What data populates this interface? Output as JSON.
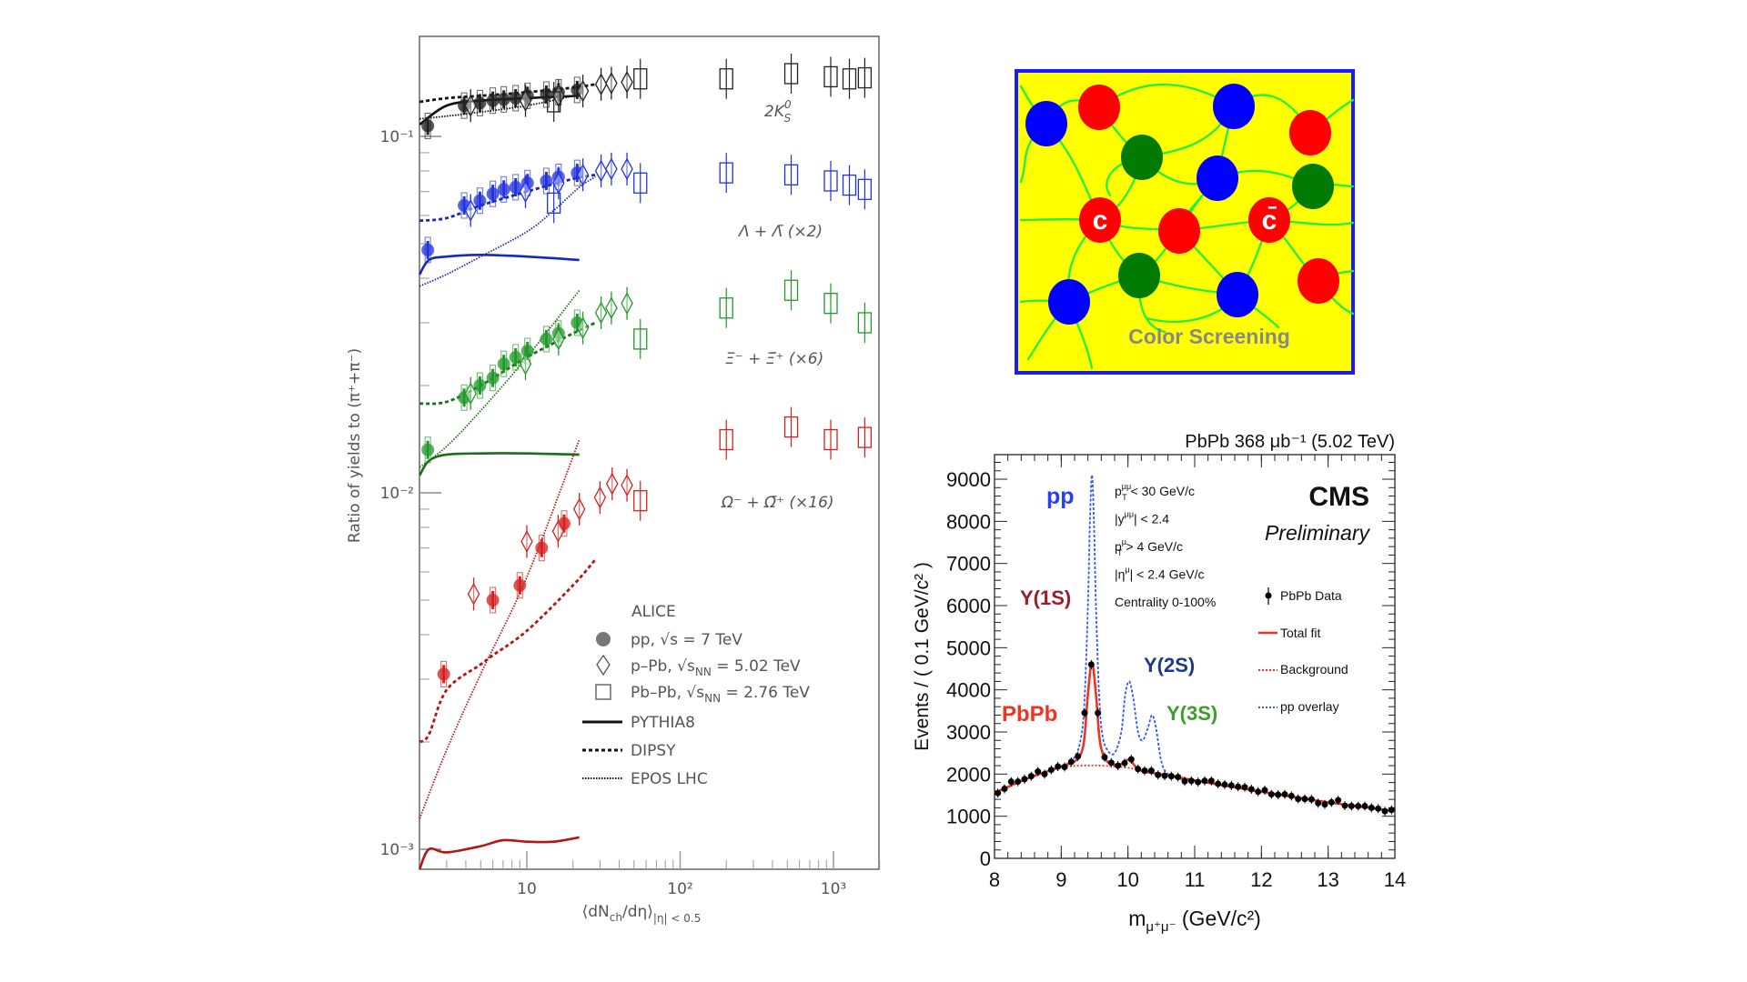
{
  "chart_data": [
    {
      "type": "scatter",
      "xscale": "log",
      "yscale": "log",
      "xlim": [
        2,
        2000
      ],
      "ylim": [
        0.00088,
        0.19
      ],
      "ylabel": "Ratio of yields to (π⁺+π⁻)",
      "xlabel_parts": {
        "a": "⟨dN",
        "b": "ch",
        "c": "/dη⟩",
        "d": "|η| < 0.5"
      },
      "y_ticks": [
        {
          "v": 0.1,
          "label": "10⁻¹"
        },
        {
          "v": 0.01,
          "label": "10⁻²"
        },
        {
          "v": 0.001,
          "label": "10⁻³"
        }
      ],
      "x_ticks": [
        {
          "v": 10,
          "label": "10"
        },
        {
          "v": 100,
          "label": "10²"
        },
        {
          "v": 1000,
          "label": "10³"
        }
      ],
      "legend": {
        "title": "ALICE",
        "pp": "pp, √s = 7 TeV",
        "ppb": {
          "a": "p–Pb, √s",
          "b": "NN",
          "c": " = 5.02 TeV"
        },
        "pbpb": {
          "a": "Pb–Pb, √s",
          "b": "NN",
          "c": " = 2.76 TeV"
        },
        "pythia": "PYTHIA8",
        "dipsy": "DIPSY",
        "epos": "EPOS LHC",
        "placement": "bottom-center"
      },
      "species": [
        {
          "key": "K",
          "color": "#222222",
          "model_color": "#111111",
          "label": {
            "a": "2K",
            "sup": "0",
            "sub": "S",
            "c": ""
          },
          "pp": {
            "x": [
              2.26,
              3.9,
              4.94,
              6.0,
              7.08,
              8.45,
              10.1,
              13.4,
              16.1,
              21.3
            ],
            "y": [
              0.107,
              0.122,
              0.124,
              0.126,
              0.127,
              0.128,
              0.13,
              0.131,
              0.133,
              0.135
            ]
          },
          "ppb": {
            "x": [
              4.3,
              9.8,
              16.1,
              23.2,
              30.5,
              35.6,
              45
            ],
            "y": [
              0.122,
              0.126,
              0.13,
              0.134,
              0.14,
              0.141,
              0.142
            ]
          },
          "pbpb": {
            "x": [
              15,
              55,
              200,
              530,
              960,
              1270,
              1600
            ],
            "y": [
              0.125,
              0.145,
              0.145,
              0.15,
              0.147,
              0.145,
              0.146
            ]
          },
          "pythia": {
            "x": [
              2,
              3,
              5,
              10,
              22
            ],
            "y": [
              0.108,
              0.122,
              0.126,
              0.128,
              0.13
            ]
          },
          "dipsy": {
            "x": [
              2,
              3,
              5,
              10,
              20,
              28
            ],
            "y": [
              0.125,
              0.128,
              0.13,
              0.133,
              0.137,
              0.14
            ]
          },
          "epos": {
            "x": [
              2,
              3,
              5,
              10,
              22
            ],
            "y": [
              0.112,
              0.114,
              0.117,
              0.122,
              0.131
            ]
          }
        },
        {
          "key": "L",
          "color": "#2233dd",
          "model_color": "#1a28b8",
          "label": {
            "a": "Λ + Λ̄ (×2)",
            "sup": "",
            "sub": "",
            "c": ""
          },
          "pp": {
            "x": [
              2.26,
              3.9,
              4.94,
              6.0,
              7.08,
              8.45,
              10.1,
              13.4,
              16.1,
              21.3
            ],
            "y": [
              0.048,
              0.064,
              0.066,
              0.069,
              0.071,
              0.072,
              0.074,
              0.075,
              0.077,
              0.079
            ]
          },
          "ppb": {
            "x": [
              4.3,
              9.8,
              16.1,
              23.2,
              30.5,
              35.6,
              45
            ],
            "y": [
              0.062,
              0.07,
              0.074,
              0.078,
              0.08,
              0.081,
              0.081
            ]
          },
          "pbpb": {
            "x": [
              15,
              55,
              200,
              530,
              960,
              1270,
              1600
            ],
            "y": [
              0.065,
              0.074,
              0.079,
              0.078,
              0.075,
              0.073,
              0.071
            ]
          },
          "pythia": {
            "x": [
              2,
              2.3,
              3,
              5,
              10,
              22
            ],
            "y": [
              0.041,
              0.045,
              0.046,
              0.0465,
              0.046,
              0.045
            ]
          },
          "dipsy": {
            "x": [
              2,
              3,
              5,
              10,
              20,
              28
            ],
            "y": [
              0.058,
              0.059,
              0.064,
              0.07,
              0.076,
              0.078
            ]
          },
          "epos": {
            "x": [
              2,
              3,
              5,
              10,
              15,
              22,
              28
            ],
            "y": [
              0.038,
              0.041,
              0.046,
              0.054,
              0.062,
              0.072,
              0.077
            ]
          }
        },
        {
          "key": "X",
          "color": "#22992a",
          "model_color": "#1a6e1a",
          "label": {
            "a": "Ξ⁻ + Ξ̄⁺ (×6)",
            "sup": "",
            "sub": "",
            "c": ""
          },
          "pp": {
            "x": [
              2.26,
              3.9,
              4.94,
              6.0,
              7.08,
              8.45,
              10.1,
              13.4,
              16.1,
              21.3
            ],
            "y": [
              0.0132,
              0.0185,
              0.02,
              0.021,
              0.023,
              0.024,
              0.025,
              0.027,
              0.028,
              0.03
            ]
          },
          "ppb": {
            "x": [
              4.3,
              9.8,
              16.1,
              23.2,
              30.5,
              35.6,
              45
            ],
            "y": [
              0.019,
              0.023,
              0.027,
              0.029,
              0.032,
              0.033,
              0.034
            ]
          },
          "pbpb": {
            "x": [
              55,
              200,
              530,
              960,
              1600
            ],
            "y": [
              0.027,
              0.033,
              0.037,
              0.034,
              0.03
            ]
          },
          "pythia": {
            "x": [
              2,
              2.3,
              3,
              5,
              10,
              22
            ],
            "y": [
              0.0112,
              0.0123,
              0.0128,
              0.0129,
              0.0129,
              0.0128
            ]
          },
          "dipsy": {
            "x": [
              2,
              3,
              5,
              10,
              20,
              28
            ],
            "y": [
              0.0178,
              0.018,
              0.02,
              0.024,
              0.028,
              0.03
            ]
          },
          "epos": {
            "x": [
              2,
              3,
              5,
              10,
              22
            ],
            "y": [
              0.0118,
              0.0135,
              0.017,
              0.024,
              0.037
            ]
          }
        },
        {
          "key": "O",
          "color": "#d42020",
          "model_color": "#b01818",
          "label": {
            "a": "Ω⁻ + Ω̄⁺ (×16)",
            "sup": "",
            "sub": "",
            "c": ""
          },
          "pp": {
            "x": [
              2.87,
              6.0,
              9.0,
              12.5,
              17.5
            ],
            "y": [
              0.0031,
              0.005,
              0.0055,
              0.007,
              0.0082
            ]
          },
          "ppb": {
            "x": [
              4.5,
              10,
              16,
              22,
              30,
              36,
              45
            ],
            "y": [
              0.0052,
              0.0073,
              0.0078,
              0.009,
              0.0097,
              0.0106,
              0.0105
            ]
          },
          "pbpb": {
            "x": [
              55,
              200,
              530,
              960,
              1600
            ],
            "y": [
              0.0095,
              0.0141,
              0.0153,
              0.0141,
              0.0143
            ]
          },
          "pythia": {
            "x": [
              2,
              2.3,
              3,
              5,
              7,
              10,
              15,
              22
            ],
            "y": [
              0.00088,
              0.001,
              0.00098,
              0.00102,
              0.00106,
              0.00105,
              0.00105,
              0.00108
            ]
          },
          "dipsy": {
            "x": [
              2,
              2.3,
              3,
              5,
              6,
              10,
              20,
              28
            ],
            "y": [
              0.002,
              0.0021,
              0.0028,
              0.0033,
              0.0035,
              0.0041,
              0.0055,
              0.0065
            ]
          },
          "epos": {
            "x": [
              2,
              3,
              5,
              10,
              22
            ],
            "y": [
              0.00122,
              0.0019,
              0.0031,
              0.0058,
              0.0141
            ]
          }
        }
      ]
    },
    {
      "type": "line",
      "title": "PbPb 368 μb⁻¹ (5.02 TeV)",
      "ylabel": "Events / ( 0.1 GeV/c² )",
      "xlabel_parts": {
        "a": "m",
        "b": "μ⁺μ⁻",
        "c": " (GeV/c²)"
      },
      "xlim": [
        8,
        14
      ],
      "ylim": [
        0,
        9600
      ],
      "x_ticks": [
        8,
        9,
        10,
        11,
        12,
        13,
        14
      ],
      "y_ticks": [
        0,
        1000,
        2000,
        3000,
        4000,
        5000,
        6000,
        7000,
        8000,
        9000
      ],
      "experiment": "CMS",
      "status": "Preliminary",
      "cuts": [
        {
          "a": "p",
          "sub": "T",
          "sup": "μμ",
          "c": " < 30 GeV/c"
        },
        {
          "a": "|y",
          "sub": "",
          "sup": "μμ",
          "c": "| < 2.4"
        },
        {
          "a": "p",
          "sub": "T",
          "sup": "μ",
          "c": " > 4 GeV/c"
        },
        {
          "a": "|η",
          "sub": "",
          "sup": "μ",
          "c": "| < 2.4 GeV/c"
        },
        {
          "a": "Centrality 0-100%",
          "sub": "",
          "sup": "",
          "c": ""
        }
      ],
      "annotations": {
        "pp": "pp",
        "y1s": "Υ(1S)",
        "pbpb": "PbPb",
        "y2s": "Υ(2S)",
        "y3s": "Υ(3S)"
      },
      "annotation_colors": {
        "pp": "#2a3cff",
        "y1s": "#9b1c2c",
        "pbpb": "#ee3322",
        "y2s": "#1d3a8a",
        "y3s": "#3aa02a"
      },
      "legend": {
        "data": "PbPb Data",
        "fit": "Total fit",
        "bg": "Background",
        "pp": "pp overlay",
        "placement": "right"
      },
      "colors": {
        "data": "#000000",
        "fit": "#ee3322",
        "bg": "#ee3322",
        "pp": "#3355ff"
      },
      "data": {
        "x": [
          8.05,
          8.15,
          8.25,
          8.35,
          8.45,
          8.55,
          8.65,
          8.75,
          8.85,
          8.95,
          9.05,
          9.15,
          9.25,
          9.35,
          9.45,
          9.55,
          9.65,
          9.75,
          9.85,
          9.95,
          10.05,
          10.15,
          10.25,
          10.35,
          10.45,
          10.55,
          10.65,
          10.75,
          10.85,
          10.95,
          11.05,
          11.15,
          11.25,
          11.35,
          11.45,
          11.55,
          11.65,
          11.75,
          11.85,
          11.95,
          12.05,
          12.15,
          12.25,
          12.35,
          12.45,
          12.55,
          12.65,
          12.75,
          12.85,
          12.95,
          13.05,
          13.15,
          13.25,
          13.35,
          13.45,
          13.55,
          13.65,
          13.75,
          13.85,
          13.95
        ],
        "y": [
          1550,
          1650,
          1820,
          1820,
          1880,
          1950,
          2060,
          2000,
          2100,
          2180,
          2170,
          2290,
          2420,
          3450,
          4600,
          3450,
          2400,
          2270,
          2200,
          2260,
          2350,
          2120,
          2080,
          2080,
          1980,
          1960,
          1950,
          1930,
          1830,
          1840,
          1810,
          1840,
          1840,
          1770,
          1750,
          1730,
          1700,
          1690,
          1640,
          1580,
          1620,
          1520,
          1510,
          1520,
          1480,
          1410,
          1410,
          1400,
          1310,
          1280,
          1330,
          1380,
          1250,
          1240,
          1240,
          1240,
          1200,
          1180,
          1120,
          1150
        ]
      },
      "total_fit": {
        "x": [
          8,
          8.5,
          9.0,
          9.2,
          9.3,
          9.35,
          9.4,
          9.46,
          9.52,
          9.57,
          9.62,
          9.7,
          9.8,
          9.9,
          10.02,
          10.1,
          10.2,
          10.4,
          10.6,
          11,
          12,
          13,
          14
        ],
        "y": [
          1550,
          1900,
          2180,
          2300,
          2500,
          2900,
          3900,
          4650,
          3900,
          2900,
          2500,
          2280,
          2220,
          2240,
          2350,
          2200,
          2080,
          2020,
          1970,
          1850,
          1580,
          1330,
          1120
        ]
      },
      "background": {
        "x": [
          8,
          8.5,
          9,
          9.3,
          9.6,
          10,
          10.5,
          11,
          12,
          13,
          14
        ],
        "y": [
          1550,
          1900,
          2150,
          2200,
          2200,
          2150,
          1990,
          1850,
          1580,
          1330,
          1120
        ]
      },
      "pp_overlay": {
        "x": [
          8,
          8.5,
          9.0,
          9.2,
          9.3,
          9.35,
          9.4,
          9.43,
          9.46,
          9.49,
          9.52,
          9.57,
          9.62,
          9.7,
          9.8,
          9.9,
          9.96,
          10.02,
          10.08,
          10.15,
          10.22,
          10.3,
          10.36,
          10.42,
          10.5,
          10.6,
          10.8,
          11,
          12,
          13,
          14
        ],
        "y": [
          1550,
          1900,
          2180,
          2400,
          2900,
          3800,
          6000,
          8000,
          9100,
          8000,
          6000,
          3800,
          2900,
          2550,
          2500,
          3000,
          3900,
          4200,
          3800,
          3000,
          2800,
          3100,
          3400,
          3100,
          2300,
          2000,
          1880,
          1840,
          1580,
          1330,
          1120
        ]
      }
    }
  ],
  "diagram": {
    "caption": "Color Screening",
    "charm_label": "c",
    "anticharm_label": "c̄",
    "colors": {
      "background": "#ffff00",
      "border": "#1a1aff",
      "strings": "#22ee44",
      "red": "#ff0000",
      "blue": "#0000ff",
      "green": "#007a00",
      "caption": "#888888"
    }
  }
}
